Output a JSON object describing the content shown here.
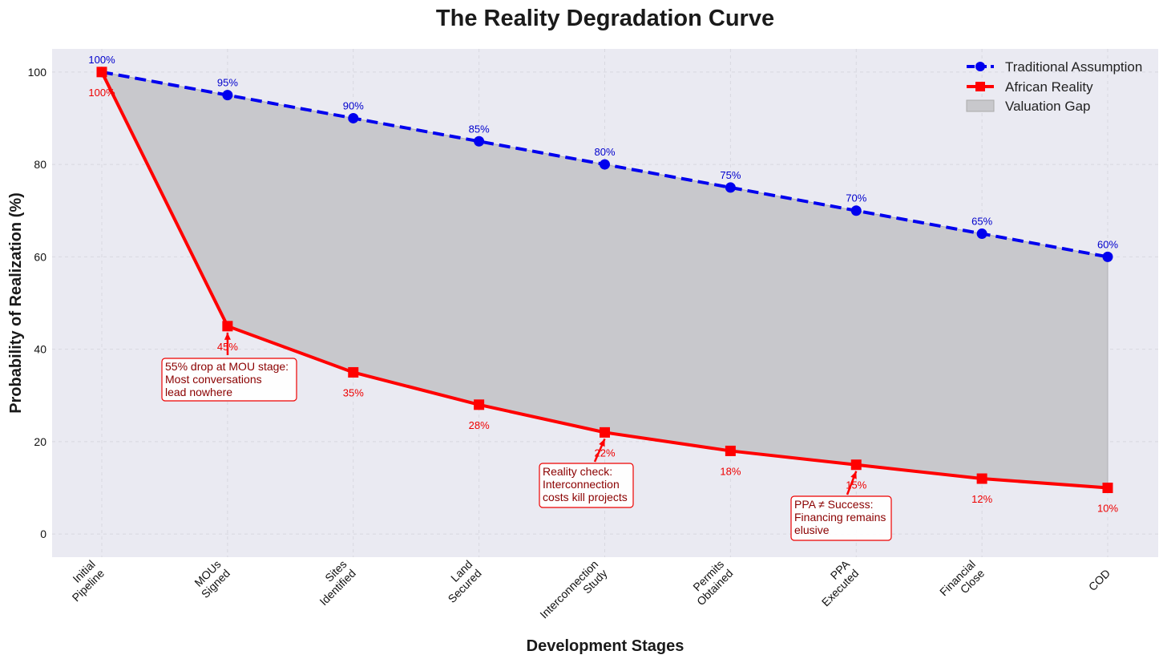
{
  "chart_data": {
    "type": "line",
    "title": "The Reality Degradation Curve",
    "xlabel": "Development Stages",
    "ylabel": "Probability of Realization (%)",
    "ylim": [
      -5,
      105
    ],
    "yticks": [
      0,
      20,
      40,
      60,
      80,
      100
    ],
    "grid": true,
    "categories": [
      [
        "Initial",
        "Pipeline"
      ],
      [
        "MOUs",
        "Signed"
      ],
      [
        "Sites",
        "Identified"
      ],
      [
        "Land",
        "Secured"
      ],
      [
        "Interconnection",
        "Study"
      ],
      [
        "Permits",
        "Obtained"
      ],
      [
        "PPA",
        "Executed"
      ],
      [
        "Financial",
        "Close"
      ],
      [
        "COD"
      ]
    ],
    "series": [
      {
        "name": "Traditional Assumption",
        "values": [
          100,
          95,
          90,
          85,
          80,
          75,
          70,
          65,
          60
        ],
        "labels": [
          "100%",
          "95%",
          "90%",
          "85%",
          "80%",
          "75%",
          "70%",
          "65%",
          "60%"
        ],
        "color": "#0000ee",
        "style": "dashed",
        "marker": "circle"
      },
      {
        "name": "African Reality",
        "values": [
          100,
          45,
          35,
          28,
          22,
          18,
          15,
          12,
          10
        ],
        "labels": [
          "100%",
          "45%",
          "35%",
          "28%",
          "22%",
          "18%",
          "15%",
          "12%",
          "10%"
        ],
        "color": "#ff0000",
        "style": "solid",
        "marker": "square"
      }
    ],
    "fill": {
      "name": "Valuation Gap",
      "color": "#c8c8cc"
    },
    "legend_position": "top-right",
    "annotations": [
      {
        "point_index": 1,
        "lines": [
          "55% drop at MOU stage:",
          "Most conversations",
          "lead nowhere"
        ]
      },
      {
        "point_index": 4,
        "lines": [
          "Reality check:",
          "Interconnection",
          "costs kill projects"
        ]
      },
      {
        "point_index": 6,
        "lines": [
          "PPA ≠ Success:",
          "Financing remains",
          "elusive"
        ]
      }
    ]
  }
}
